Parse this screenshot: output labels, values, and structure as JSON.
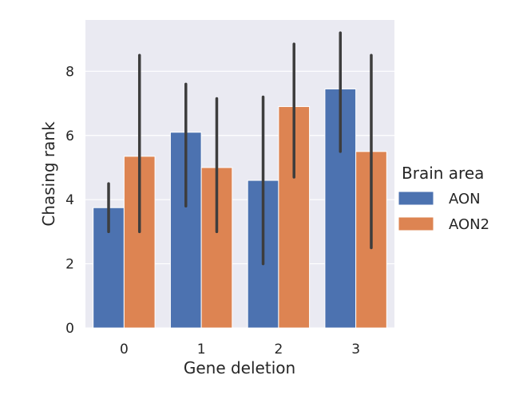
{
  "chart_data": {
    "type": "bar",
    "xlabel": "Gene deletion",
    "ylabel": "Chasing rank",
    "categories": [
      "0",
      "1",
      "2",
      "3"
    ],
    "ylim": [
      0,
      9.6
    ],
    "yticks": [
      0,
      2,
      4,
      6,
      8
    ],
    "grid": true,
    "legend": {
      "title": "Brain area",
      "placement": "right"
    },
    "series": [
      {
        "name": "AON",
        "color": "#4c72b0",
        "values": [
          3.75,
          6.1,
          4.6,
          7.45
        ],
        "ci_low": [
          3.0,
          3.8,
          2.0,
          5.5
        ],
        "ci_high": [
          4.5,
          7.6,
          7.2,
          9.2
        ]
      },
      {
        "name": "AON2",
        "color": "#dd8452",
        "values": [
          5.35,
          5.0,
          6.9,
          5.5
        ],
        "ci_low": [
          3.0,
          3.0,
          4.7,
          2.5
        ],
        "ci_high": [
          8.5,
          7.15,
          8.85,
          8.5
        ]
      }
    ]
  }
}
